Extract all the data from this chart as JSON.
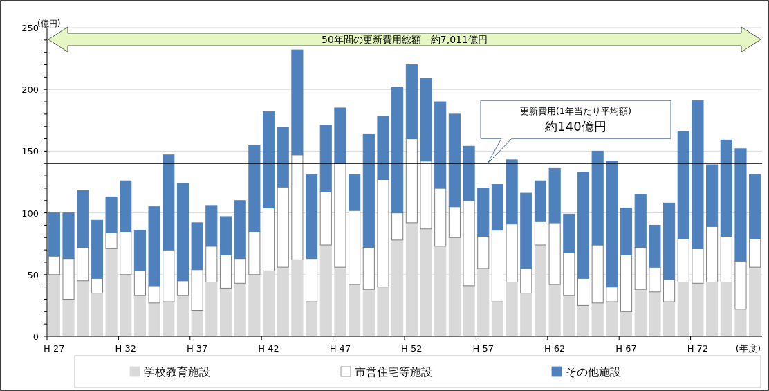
{
  "chart_data": {
    "type": "bar",
    "stacked": true,
    "ylabel": "(億円)",
    "xlabel": "(年度)",
    "categories": [
      "H 27",
      null,
      null,
      null,
      null,
      "H 32",
      null,
      null,
      null,
      null,
      "H 37",
      null,
      null,
      null,
      null,
      "H 42",
      null,
      null,
      null,
      null,
      "H 47",
      null,
      null,
      null,
      null,
      "H 52",
      null,
      null,
      null,
      null,
      "H 57",
      null,
      null,
      null,
      null,
      "H 62",
      null,
      null,
      null,
      null,
      "H 67",
      null,
      null,
      null,
      null,
      "H 72",
      null,
      null,
      null,
      null
    ],
    "series": [
      {
        "name": "学校教育施設",
        "color": "#d9d9d9",
        "values": [
          50,
          30,
          45,
          35,
          71,
          50,
          33,
          27,
          28,
          33,
          21,
          44,
          39,
          43,
          50,
          53,
          56,
          62,
          28,
          74,
          56,
          42,
          38,
          40,
          78,
          92,
          87,
          73,
          80,
          41,
          55,
          28,
          44,
          35,
          74,
          42,
          33,
          25,
          27,
          28,
          20,
          38,
          36,
          28,
          44,
          43,
          44,
          44,
          22,
          56
        ]
      },
      {
        "name": "市営住宅等施設",
        "color": "#ffffff",
        "values": [
          15,
          33,
          27,
          12,
          13,
          35,
          20,
          14,
          42,
          12,
          33,
          29,
          27,
          20,
          35,
          51,
          65,
          85,
          35,
          43,
          84,
          60,
          34,
          87,
          22,
          68,
          55,
          47,
          25,
          69,
          26,
          58,
          47,
          20,
          19,
          50,
          35,
          22,
          47,
          12,
          46,
          34,
          20,
          18,
          35,
          28,
          45,
          37,
          39,
          23
        ]
      },
      {
        "name": "その他施設",
        "color": "#4f81bd",
        "values": [
          35,
          37,
          46,
          47,
          29,
          41,
          33,
          64,
          77,
          79,
          38,
          33,
          31,
          47,
          70,
          78,
          48,
          85,
          68,
          54,
          45,
          29,
          92,
          51,
          102,
          60,
          67,
          70,
          75,
          44,
          39,
          37,
          52,
          61,
          33,
          44,
          31,
          86,
          76,
          102,
          38,
          43,
          34,
          62,
          87,
          120,
          50,
          78,
          91,
          52
        ]
      }
    ],
    "ylim": [
      0,
      250
    ],
    "yticks": [
      0,
      {
        "value": 10,
        "label": null
      },
      {
        "value": 20,
        "label": null
      },
      {
        "value": 30,
        "label": null
      },
      {
        "value": 40,
        "label": null
      },
      50,
      {
        "value": 60,
        "label": null
      },
      {
        "value": 70,
        "label": null
      },
      {
        "value": 80,
        "label": null
      },
      {
        "value": 90,
        "label": null
      },
      100,
      {
        "value": 110,
        "label": null
      },
      {
        "value": 120,
        "label": null
      },
      {
        "value": 130,
        "label": null
      },
      {
        "value": 140,
        "label": null
      },
      150,
      {
        "value": 160,
        "label": null
      },
      {
        "value": 170,
        "label": null
      },
      {
        "value": 180,
        "label": null
      },
      {
        "value": 190,
        "label": null
      },
      200,
      {
        "value": 210,
        "label": null
      },
      {
        "value": 220,
        "label": null
      },
      {
        "value": 230,
        "label": null
      },
      {
        "value": 240,
        "label": null
      },
      250
    ],
    "grid": "y",
    "ref_lines": [
      {
        "axis": "y",
        "value": 140,
        "label": "更新費用(1年当たり平均額)\n約140億円",
        "color": "#000000"
      }
    ],
    "annotations": [
      "50年間の更新費用総額　約7,011億円"
    ],
    "legend": "bottom"
  }
}
